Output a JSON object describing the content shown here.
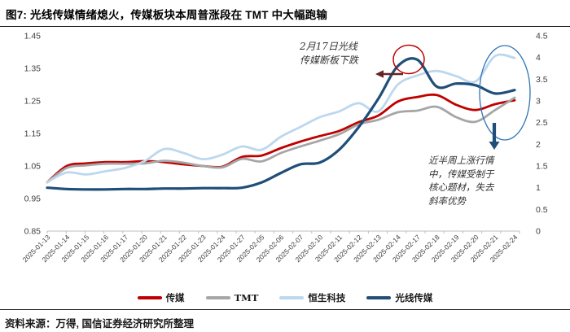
{
  "title": "图7: 光线传媒情绪熄火，传媒板块本周普涨段在 TMT 中大幅跑输",
  "source": "资料来源：万得, 国信证券经济研究所整理",
  "colors": {
    "media_red": "#C00000",
    "tmt_gray": "#A6A6A6",
    "hstech_lightblue": "#BDD7EE",
    "enlight_darkblue": "#1F4E79",
    "annotation_circle": "#C00000",
    "annotation_ellipse": "#2E74B5",
    "annotation_arrow_left": "#632423",
    "annotation_arrow_down": "#1F4E79",
    "axis_line": "#BFBFBF",
    "tick_text": "#404040"
  },
  "annotations": {
    "feb17": {
      "lines": [
        "2月17日光线",
        "传媒断板下跌"
      ]
    },
    "slope_note": {
      "lines": [
        "近半周上涨行情",
        "中，传媒受制于",
        "核心题材，失去",
        "斜率优势"
      ]
    }
  },
  "chart_data": {
    "type": "line",
    "smooth": true,
    "grid": false,
    "legend_position": "bottom",
    "x": [
      "2025-01-13",
      "2025-01-14",
      "2025-01-15",
      "2025-01-16",
      "2025-01-17",
      "2025-01-20",
      "2025-01-21",
      "2025-01-22",
      "2025-01-23",
      "2025-01-24",
      "2025-01-27",
      "2025-02-05",
      "2025-02-06",
      "2025-02-07",
      "2025-02-10",
      "2025-02-11",
      "2025-02-12",
      "2025-02-13",
      "2025-02-14",
      "2025-02-17",
      "2025-02-18",
      "2025-02-19",
      "2025-02-20",
      "2025-02-21",
      "2025-02-24"
    ],
    "left_axis": {
      "min": 0.85,
      "max": 1.45,
      "ticks": [
        0.85,
        0.95,
        1.05,
        1.15,
        1.25,
        1.35,
        1.45
      ]
    },
    "right_axis": {
      "min": 0,
      "max": 4.5,
      "ticks": [
        0,
        0.5,
        1,
        1.5,
        2,
        2.5,
        3,
        3.5,
        4,
        4.5
      ]
    },
    "series": [
      {
        "name": "传媒",
        "key": "media",
        "axis": "left",
        "color": "#C00000",
        "width": 2.8,
        "values": [
          1.0,
          1.05,
          1.058,
          1.062,
          1.062,
          1.065,
          1.062,
          1.055,
          1.05,
          1.048,
          1.078,
          1.082,
          1.105,
          1.125,
          1.142,
          1.158,
          1.185,
          1.205,
          1.248,
          1.262,
          1.268,
          1.238,
          1.222,
          1.24,
          1.252
        ]
      },
      {
        "name": "TMT",
        "key": "tmt",
        "axis": "left",
        "color": "#A6A6A6",
        "width": 2.8,
        "values": [
          1.0,
          1.044,
          1.052,
          1.057,
          1.057,
          1.058,
          1.066,
          1.06,
          1.05,
          1.046,
          1.072,
          1.064,
          1.09,
          1.11,
          1.128,
          1.148,
          1.178,
          1.192,
          1.215,
          1.22,
          1.232,
          1.2,
          1.186,
          1.222,
          1.26
        ]
      },
      {
        "name": "恒生科技",
        "key": "hstech",
        "axis": "left",
        "color": "#BDD7EE",
        "width": 2.8,
        "values": [
          1.0,
          1.03,
          1.024,
          1.034,
          1.044,
          1.065,
          1.102,
          1.09,
          1.071,
          1.085,
          1.11,
          1.1,
          1.14,
          1.17,
          1.2,
          1.218,
          1.243,
          1.218,
          1.3,
          1.328,
          1.342,
          1.326,
          1.31,
          1.388,
          1.382
        ]
      },
      {
        "name": "光线传媒",
        "key": "enlight-media",
        "axis": "right",
        "color": "#1F4E79",
        "width": 3.2,
        "values": [
          1.0,
          0.97,
          0.96,
          0.96,
          0.97,
          0.97,
          0.98,
          0.98,
          0.99,
          0.99,
          1.0,
          1.12,
          1.34,
          1.54,
          1.58,
          1.88,
          2.4,
          3.05,
          3.8,
          3.95,
          3.33,
          3.4,
          3.36,
          3.17,
          3.25
        ]
      }
    ]
  }
}
